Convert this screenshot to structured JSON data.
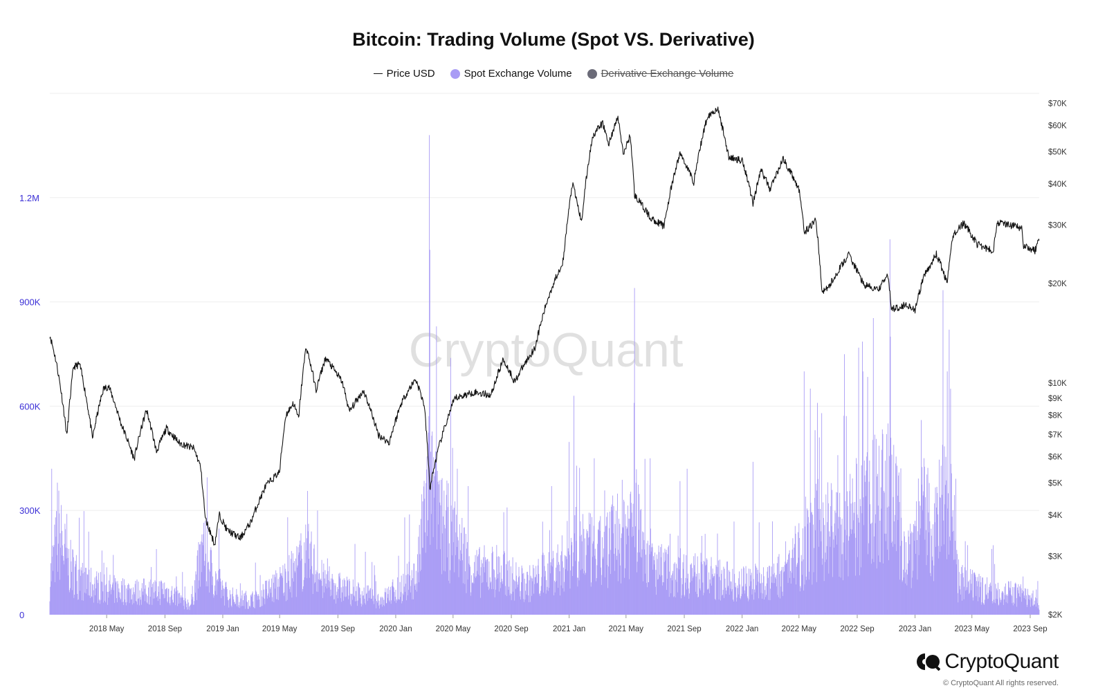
{
  "title": "Bitcoin: Trading Volume (Spot VS. Derivative)",
  "legend": [
    {
      "label": "Price USD",
      "kind": "line",
      "color": "#111111",
      "hidden": false
    },
    {
      "label": "Spot Exchange Volume",
      "kind": "dot",
      "color": "#a99cf5",
      "hidden": false
    },
    {
      "label": "Derivative Exchange Volume",
      "kind": "dot",
      "color": "#6b6b78",
      "hidden": true
    }
  ],
  "watermark": "CryptoQuant",
  "brand": {
    "name": "CryptoQuant",
    "copyright": "© CryptoQuant All rights reserved."
  },
  "colors": {
    "price": "#111111",
    "spot": "#a99cf5",
    "left_axis_text": "#3b2fd6",
    "right_axis_text": "#333333",
    "grid": "#eeeeee"
  },
  "chart_data": {
    "type": "line",
    "x_axis": {
      "type": "date",
      "range": [
        "2018-01-01",
        "2023-09-20"
      ],
      "ticks": [
        {
          "label": "2018 May",
          "date": "2018-05-01"
        },
        {
          "label": "2018 Sep",
          "date": "2018-09-01"
        },
        {
          "label": "2019 Jan",
          "date": "2019-01-01"
        },
        {
          "label": "2019 May",
          "date": "2019-05-01"
        },
        {
          "label": "2019 Sep",
          "date": "2019-09-01"
        },
        {
          "label": "2020 Jan",
          "date": "2020-01-01"
        },
        {
          "label": "2020 May",
          "date": "2020-05-01"
        },
        {
          "label": "2020 Sep",
          "date": "2020-09-01"
        },
        {
          "label": "2021 Jan",
          "date": "2021-01-01"
        },
        {
          "label": "2021 May",
          "date": "2021-05-01"
        },
        {
          "label": "2021 Sep",
          "date": "2021-09-01"
        },
        {
          "label": "2022 Jan",
          "date": "2022-01-01"
        },
        {
          "label": "2022 May",
          "date": "2022-05-01"
        },
        {
          "label": "2022 Sep",
          "date": "2022-09-01"
        },
        {
          "label": "2023 Jan",
          "date": "2023-01-01"
        },
        {
          "label": "2023 May",
          "date": "2023-05-01"
        },
        {
          "label": "2023 Sep",
          "date": "2023-09-01"
        }
      ]
    },
    "y_left": {
      "label": "",
      "scale": "linear",
      "range": [
        0,
        1500000
      ],
      "ticks": [
        {
          "label": "0",
          "value": 0
        },
        {
          "label": "300K",
          "value": 300000
        },
        {
          "label": "600K",
          "value": 600000
        },
        {
          "label": "900K",
          "value": 900000
        },
        {
          "label": "1.2M",
          "value": 1200000
        }
      ]
    },
    "y_right": {
      "label": "",
      "scale": "log",
      "range": [
        2000,
        75000
      ],
      "ticks": [
        {
          "label": "$2K",
          "value": 2000
        },
        {
          "label": "$3K",
          "value": 3000
        },
        {
          "label": "$4K",
          "value": 4000
        },
        {
          "label": "$5K",
          "value": 5000
        },
        {
          "label": "$6K",
          "value": 6000
        },
        {
          "label": "$7K",
          "value": 7000
        },
        {
          "label": "$8K",
          "value": 8000
        },
        {
          "label": "$9K",
          "value": 9000
        },
        {
          "label": "$10K",
          "value": 10000
        },
        {
          "label": "$20K",
          "value": 20000
        },
        {
          "label": "$30K",
          "value": 30000
        },
        {
          "label": "$40K",
          "value": 40000
        },
        {
          "label": "$50K",
          "value": 50000
        },
        {
          "label": "$60K",
          "value": 60000
        },
        {
          "label": "$70K",
          "value": 70000
        }
      ]
    },
    "grid": true,
    "legend_position": "top",
    "series": [
      {
        "name": "Price USD",
        "type": "line",
        "axis": "right",
        "points": [
          [
            "2018-01-01",
            14000
          ],
          [
            "2018-01-15",
            11500
          ],
          [
            "2018-02-06",
            6900
          ],
          [
            "2018-02-20",
            11200
          ],
          [
            "2018-03-05",
            11400
          ],
          [
            "2018-04-01",
            6800
          ],
          [
            "2018-04-24",
            9600
          ],
          [
            "2018-05-05",
            9800
          ],
          [
            "2018-06-01",
            7500
          ],
          [
            "2018-06-28",
            5900
          ],
          [
            "2018-07-24",
            8300
          ],
          [
            "2018-08-14",
            6200
          ],
          [
            "2018-09-04",
            7300
          ],
          [
            "2018-10-01",
            6600
          ],
          [
            "2018-11-01",
            6350
          ],
          [
            "2018-11-15",
            5600
          ],
          [
            "2018-11-25",
            3900
          ],
          [
            "2018-12-15",
            3250
          ],
          [
            "2018-12-25",
            4000
          ],
          [
            "2019-01-10",
            3600
          ],
          [
            "2019-02-07",
            3400
          ],
          [
            "2019-03-01",
            3800
          ],
          [
            "2019-04-02",
            4900
          ],
          [
            "2019-05-01",
            5400
          ],
          [
            "2019-05-14",
            8000
          ],
          [
            "2019-05-30",
            8700
          ],
          [
            "2019-06-10",
            7800
          ],
          [
            "2019-06-26",
            12900
          ],
          [
            "2019-07-17",
            9500
          ],
          [
            "2019-08-06",
            11900
          ],
          [
            "2019-09-10",
            10100
          ],
          [
            "2019-09-25",
            8200
          ],
          [
            "2019-10-25",
            9500
          ],
          [
            "2019-11-25",
            7000
          ],
          [
            "2019-12-18",
            6600
          ],
          [
            "2020-01-14",
            8800
          ],
          [
            "2020-02-12",
            10300
          ],
          [
            "2020-03-01",
            8600
          ],
          [
            "2020-03-13",
            4800
          ],
          [
            "2020-04-01",
            6400
          ],
          [
            "2020-05-05",
            9000
          ],
          [
            "2020-06-15",
            9400
          ],
          [
            "2020-07-20",
            9200
          ],
          [
            "2020-08-15",
            11800
          ],
          [
            "2020-09-08",
            10100
          ],
          [
            "2020-10-21",
            12800
          ],
          [
            "2020-11-20",
            18500
          ],
          [
            "2020-12-20",
            23500
          ],
          [
            "2021-01-08",
            40000
          ],
          [
            "2021-01-27",
            30500
          ],
          [
            "2021-02-20",
            56000
          ],
          [
            "2021-03-13",
            61000
          ],
          [
            "2021-03-25",
            52500
          ],
          [
            "2021-04-14",
            63500
          ],
          [
            "2021-04-25",
            49000
          ],
          [
            "2021-05-10",
            56000
          ],
          [
            "2021-05-19",
            37000
          ],
          [
            "2021-06-22",
            31500
          ],
          [
            "2021-07-20",
            29800
          ],
          [
            "2021-08-23",
            49500
          ],
          [
            "2021-09-21",
            40500
          ],
          [
            "2021-10-20",
            64000
          ],
          [
            "2021-11-10",
            67500
          ],
          [
            "2021-12-04",
            48000
          ],
          [
            "2022-01-02",
            47000
          ],
          [
            "2022-01-24",
            35000
          ],
          [
            "2022-02-10",
            44000
          ],
          [
            "2022-03-01",
            38500
          ],
          [
            "2022-03-29",
            47500
          ],
          [
            "2022-05-01",
            38500
          ],
          [
            "2022-05-12",
            28500
          ],
          [
            "2022-06-06",
            31000
          ],
          [
            "2022-06-18",
            19000
          ],
          [
            "2022-07-01",
            19300
          ],
          [
            "2022-08-14",
            24400
          ],
          [
            "2022-09-15",
            19800
          ],
          [
            "2022-10-15",
            19100
          ],
          [
            "2022-11-05",
            21200
          ],
          [
            "2022-11-12",
            16700
          ],
          [
            "2022-12-15",
            17300
          ],
          [
            "2023-01-01",
            16600
          ],
          [
            "2023-01-20",
            21000
          ],
          [
            "2023-02-15",
            24500
          ],
          [
            "2023-03-10",
            20000
          ],
          [
            "2023-03-22",
            28000
          ],
          [
            "2023-04-14",
            30400
          ],
          [
            "2023-05-12",
            26300
          ],
          [
            "2023-06-15",
            25000
          ],
          [
            "2023-06-23",
            30600
          ],
          [
            "2023-07-15",
            30200
          ],
          [
            "2023-08-14",
            29300
          ],
          [
            "2023-08-18",
            26100
          ],
          [
            "2023-09-11",
            25100
          ],
          [
            "2023-09-20",
            27100
          ]
        ]
      },
      {
        "name": "Spot Exchange Volume",
        "type": "area",
        "axis": "left",
        "points": [
          [
            "2018-01-01",
            110000
          ],
          [
            "2018-01-20",
            250000
          ],
          [
            "2018-02-10",
            150000
          ],
          [
            "2018-03-15",
            100000
          ],
          [
            "2018-05-01",
            80000
          ],
          [
            "2018-07-01",
            70000
          ],
          [
            "2018-09-01",
            75000
          ],
          [
            "2018-10-25",
            30000
          ],
          [
            "2018-11-20",
            200000
          ],
          [
            "2018-12-15",
            110000
          ],
          [
            "2019-01-15",
            55000
          ],
          [
            "2019-03-01",
            45000
          ],
          [
            "2019-04-15",
            80000
          ],
          [
            "2019-06-01",
            130000
          ],
          [
            "2019-06-26",
            190000
          ],
          [
            "2019-08-01",
            100000
          ],
          [
            "2019-10-01",
            70000
          ],
          [
            "2019-11-01",
            60000
          ],
          [
            "2019-12-01",
            45000
          ],
          [
            "2020-01-15",
            90000
          ],
          [
            "2020-02-15",
            120000
          ],
          [
            "2020-03-13",
            430000
          ],
          [
            "2020-04-01",
            280000
          ],
          [
            "2020-05-10",
            230000
          ],
          [
            "2020-06-15",
            130000
          ],
          [
            "2020-08-01",
            140000
          ],
          [
            "2020-10-01",
            90000
          ],
          [
            "2020-12-15",
            150000
          ],
          [
            "2021-01-15",
            230000
          ],
          [
            "2021-03-01",
            180000
          ],
          [
            "2021-05-19",
            300000
          ],
          [
            "2021-07-01",
            140000
          ],
          [
            "2021-09-07",
            130000
          ],
          [
            "2021-11-01",
            110000
          ],
          [
            "2022-01-01",
            100000
          ],
          [
            "2022-03-01",
            100000
          ],
          [
            "2022-05-12",
            200000
          ],
          [
            "2022-06-18",
            280000
          ],
          [
            "2022-08-01",
            250000
          ],
          [
            "2022-09-15",
            330000
          ],
          [
            "2022-11-10",
            380000
          ],
          [
            "2022-12-15",
            180000
          ],
          [
            "2023-01-15",
            310000
          ],
          [
            "2023-02-15",
            250000
          ],
          [
            "2023-03-15",
            480000
          ],
          [
            "2023-04-01",
            100000
          ],
          [
            "2023-05-15",
            80000
          ],
          [
            "2023-07-01",
            70000
          ],
          [
            "2023-08-18",
            60000
          ],
          [
            "2023-09-20",
            30000
          ]
        ],
        "spikes": [
          [
            "2018-01-05",
            420000
          ],
          [
            "2018-01-17",
            380000
          ],
          [
            "2018-02-06",
            290000
          ],
          [
            "2018-11-20",
            200000
          ],
          [
            "2019-06-27",
            220000
          ],
          [
            "2019-07-20",
            300000
          ],
          [
            "2020-01-20",
            280000
          ],
          [
            "2020-03-12",
            1380000
          ],
          [
            "2020-03-13",
            1050000
          ],
          [
            "2020-04-30",
            480000
          ],
          [
            "2020-05-10",
            420000
          ],
          [
            "2020-06-02",
            370000
          ],
          [
            "2020-11-25",
            370000
          ],
          [
            "2021-01-11",
            630000
          ],
          [
            "2021-02-23",
            450000
          ],
          [
            "2021-05-19",
            940000
          ],
          [
            "2021-06-21",
            450000
          ],
          [
            "2021-09-07",
            420000
          ],
          [
            "2022-01-24",
            440000
          ],
          [
            "2022-05-12",
            700000
          ],
          [
            "2022-06-13",
            510000
          ],
          [
            "2022-06-18",
            580000
          ],
          [
            "2022-09-13",
            700000
          ],
          [
            "2022-10-25",
            520000
          ],
          [
            "2022-11-09",
            1080000
          ],
          [
            "2022-11-10",
            800000
          ],
          [
            "2023-01-14",
            560000
          ],
          [
            "2023-03-10",
            700000
          ],
          [
            "2023-03-14",
            820000
          ],
          [
            "2023-03-17",
            650000
          ],
          [
            "2023-06-15",
            200000
          ],
          [
            "2023-08-17",
            110000
          ]
        ]
      }
    ]
  }
}
